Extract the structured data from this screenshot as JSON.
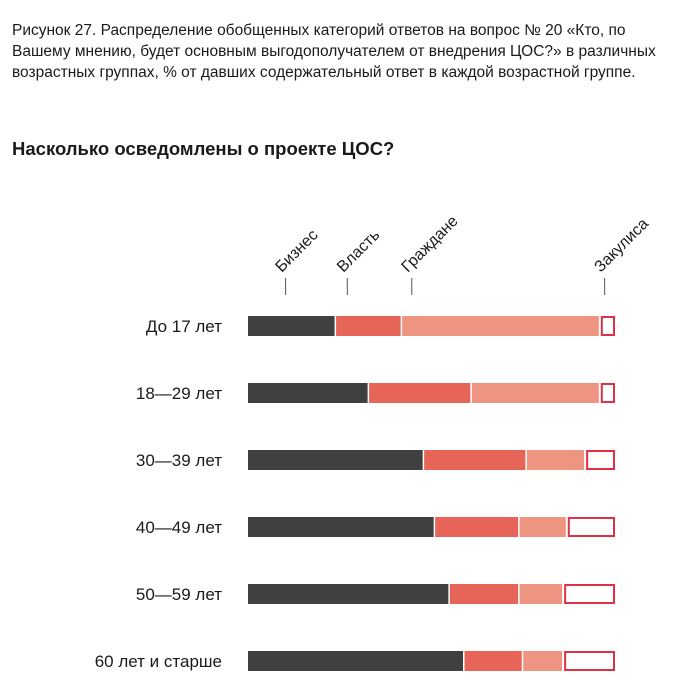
{
  "caption": "Рисунок 27. Распределение обобщенных категорий ответов на вопрос № 20 «Кто, по Вашему мнению, будет основным выгодополучателем от внедрения ЦОС?» в различных возрастных группах, % от давших содержательный ответ в каждой возрастной группе.",
  "chart_data": {
    "type": "bar",
    "stacked": true,
    "orientation": "horizontal",
    "title": "Насколько осведомлены о проекте ЦОС?",
    "categories": [
      "До 17 лет",
      "18—29 лет",
      "30—39 лет",
      "40—49 лет",
      "50—59 лет",
      "60 лет и старше"
    ],
    "series": [
      {
        "name": "Бизнес",
        "color": "#404040",
        "values": [
          24,
          33,
          48,
          51,
          55,
          59
        ]
      },
      {
        "name": "Власть",
        "color": "#e66558",
        "values": [
          18,
          28,
          28,
          23,
          19,
          16
        ]
      },
      {
        "name": "Граждане",
        "color": "#ee9582",
        "values": [
          54,
          35,
          16,
          13,
          12,
          11
        ]
      },
      {
        "name": "Закулиса",
        "color": "#ffffff",
        "stroke": "#e03048",
        "values": [
          4,
          4,
          8,
          13,
          14,
          14
        ]
      }
    ],
    "xlim": [
      0,
      100
    ],
    "legend": "top, rotated labels above bars"
  }
}
